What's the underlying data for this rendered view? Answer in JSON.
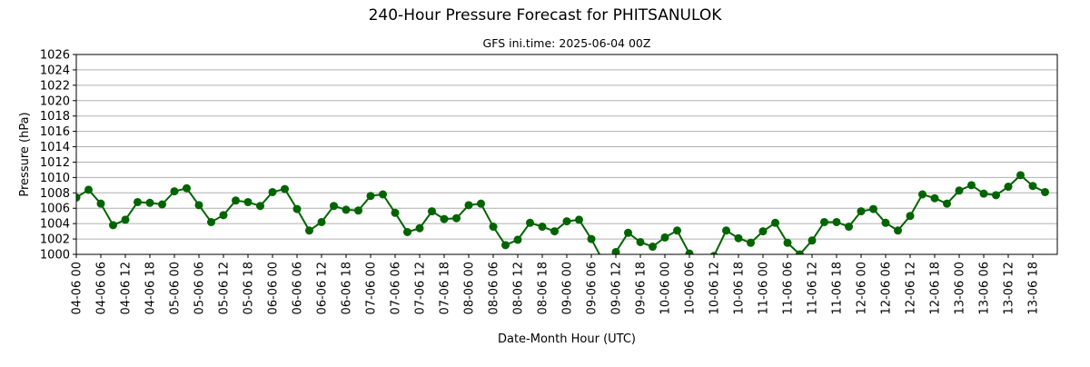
{
  "chart_data": {
    "type": "line",
    "title": "240-Hour Pressure Forecast for PHITSANULOK",
    "subtitle": "GFS ini.time: 2025-06-04 00Z",
    "xlabel": "Date-Month Hour (UTC)",
    "ylabel": "Pressure (hPa)",
    "ylim": [
      1000,
      1026
    ],
    "yticks": [
      1000,
      1002,
      1004,
      1006,
      1008,
      1010,
      1012,
      1014,
      1016,
      1018,
      1020,
      1022,
      1024,
      1026
    ],
    "grid": "horizontal",
    "line_color": "#006400",
    "x_step_hours": 3,
    "xlim_index": [
      0,
      80
    ],
    "xtick_labels": [
      "04-06 00",
      "04-06 06",
      "04-06 12",
      "04-06 18",
      "05-06 00",
      "05-06 06",
      "05-06 12",
      "05-06 18",
      "06-06 00",
      "06-06 06",
      "06-06 12",
      "06-06 18",
      "07-06 00",
      "07-06 06",
      "07-06 12",
      "07-06 18",
      "08-06 00",
      "08-06 06",
      "08-06 12",
      "08-06 18",
      "09-06 00",
      "09-06 06",
      "09-06 12",
      "09-06 18",
      "10-06 00",
      "10-06 06",
      "10-06 12",
      "10-06 18",
      "11-06 00",
      "11-06 06",
      "11-06 12",
      "11-06 18",
      "12-06 00",
      "12-06 06",
      "12-06 12",
      "12-06 18",
      "13-06 00",
      "13-06 06",
      "13-06 12",
      "13-06 18"
    ],
    "series": [
      {
        "values": [
          1007.4,
          1008.4,
          1006.6,
          1003.8,
          1004.5,
          1006.8,
          1006.7,
          1006.5,
          1008.2,
          1008.6,
          1006.4,
          1004.2,
          1005.1,
          1007.0,
          1006.8,
          1006.3,
          1008.1,
          1008.5,
          1005.9,
          1003.1,
          1004.2,
          1006.3,
          1005.8,
          1005.7,
          1007.6,
          1007.8,
          1005.4,
          1002.9,
          1003.4,
          1005.6,
          1004.6,
          1004.7,
          1006.4,
          1006.6,
          1003.6,
          1001.2,
          1001.9,
          1004.1,
          1003.6,
          1003.0,
          1004.3,
          1004.5,
          1002.0,
          999.0,
          1000.3,
          1002.8,
          1001.6,
          1001.0,
          1002.2,
          1003.1,
          1000.1,
          999.4,
          999.8,
          1003.1,
          1002.1,
          1001.5,
          1003.0,
          1004.1,
          1001.5,
          1000.0,
          1001.8,
          1004.2,
          1004.2,
          1003.6,
          1005.6,
          1005.9,
          1004.1,
          1003.1,
          1005.0,
          1007.8,
          1007.3,
          1006.6,
          1008.3,
          1009.0,
          1007.9,
          1007.7,
          1008.8,
          1010.3,
          1008.9,
          1008.1
        ]
      }
    ]
  }
}
